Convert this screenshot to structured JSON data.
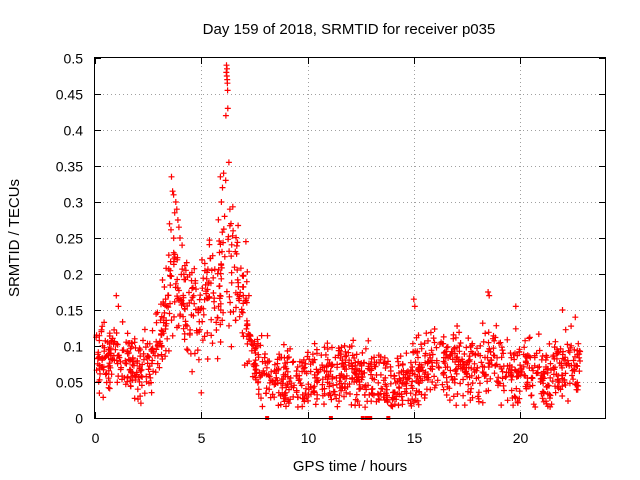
{
  "chart_data": {
    "type": "scatter",
    "title": "Day 159 of 2018, SRMTID for receiver p035",
    "xlabel": "GPS time / hours",
    "ylabel": "SRMTID / TECUs",
    "xlim": [
      0,
      24
    ],
    "ylim": [
      0,
      0.5
    ],
    "x_ticks": [
      0,
      5,
      10,
      15,
      20
    ],
    "x_tick_labels": [
      "0",
      "5",
      "10",
      "15",
      "20"
    ],
    "y_ticks": [
      0,
      0.05,
      0.1,
      0.15,
      0.2,
      0.25,
      0.3,
      0.35,
      0.4,
      0.45,
      0.5
    ],
    "y_tick_labels": [
      "0",
      "0.05",
      "0.1",
      "0.15",
      "0.2",
      "0.25",
      "0.3",
      "0.35",
      "0.4",
      "0.45",
      "0.5"
    ],
    "grid": true,
    "marker": "+",
    "series_color": "#ff0000",
    "trend": [
      [
        0.0,
        0.075
      ],
      [
        0.5,
        0.08
      ],
      [
        1.0,
        0.085
      ],
      [
        1.5,
        0.08
      ],
      [
        2.0,
        0.07
      ],
      [
        2.5,
        0.075
      ],
      [
        3.0,
        0.1
      ],
      [
        3.3,
        0.14
      ],
      [
        3.7,
        0.19
      ],
      [
        4.2,
        0.17
      ],
      [
        4.7,
        0.14
      ],
      [
        5.2,
        0.16
      ],
      [
        5.7,
        0.18
      ],
      [
        6.2,
        0.22
      ],
      [
        6.7,
        0.19
      ],
      [
        7.2,
        0.13
      ],
      [
        7.5,
        0.08
      ],
      [
        8.0,
        0.055
      ],
      [
        9.0,
        0.05
      ],
      [
        10.0,
        0.05
      ],
      [
        11.0,
        0.06
      ],
      [
        12.0,
        0.065
      ],
      [
        13.0,
        0.05
      ],
      [
        14.0,
        0.045
      ],
      [
        15.0,
        0.06
      ],
      [
        16.0,
        0.075
      ],
      [
        17.0,
        0.07
      ],
      [
        18.0,
        0.065
      ],
      [
        18.5,
        0.08
      ],
      [
        19.0,
        0.075
      ],
      [
        20.0,
        0.065
      ],
      [
        21.0,
        0.06
      ],
      [
        21.5,
        0.06
      ],
      [
        22.0,
        0.07
      ],
      [
        22.8,
        0.07
      ]
    ],
    "spread": 0.032,
    "n_points": 1500,
    "x_range_data": [
      0.0,
      22.85
    ],
    "outliers": [
      {
        "x": 3.6,
        "y": 0.335
      },
      {
        "x": 3.65,
        "y": 0.315
      },
      {
        "x": 3.7,
        "y": 0.31
      },
      {
        "x": 3.8,
        "y": 0.3
      },
      {
        "x": 3.85,
        "y": 0.29
      },
      {
        "x": 3.9,
        "y": 0.275
      },
      {
        "x": 3.95,
        "y": 0.265
      },
      {
        "x": 3.75,
        "y": 0.285
      },
      {
        "x": 4.0,
        "y": 0.25
      },
      {
        "x": 4.1,
        "y": 0.24
      },
      {
        "x": 5.9,
        "y": 0.335
      },
      {
        "x": 5.95,
        "y": 0.3
      },
      {
        "x": 6.0,
        "y": 0.32
      },
      {
        "x": 6.05,
        "y": 0.34
      },
      {
        "x": 6.1,
        "y": 0.28
      },
      {
        "x": 6.15,
        "y": 0.33
      },
      {
        "x": 6.18,
        "y": 0.48
      },
      {
        "x": 6.2,
        "y": 0.475
      },
      {
        "x": 6.22,
        "y": 0.47
      },
      {
        "x": 6.23,
        "y": 0.465
      },
      {
        "x": 6.24,
        "y": 0.455
      },
      {
        "x": 6.19,
        "y": 0.49
      },
      {
        "x": 6.21,
        "y": 0.485
      },
      {
        "x": 6.16,
        "y": 0.42
      },
      {
        "x": 6.25,
        "y": 0.43
      },
      {
        "x": 6.3,
        "y": 0.355
      },
      {
        "x": 6.35,
        "y": 0.29
      },
      {
        "x": 6.4,
        "y": 0.27
      },
      {
        "x": 6.5,
        "y": 0.26
      },
      {
        "x": 0.3,
        "y": 0.12
      },
      {
        "x": 1.0,
        "y": 0.17
      },
      {
        "x": 1.1,
        "y": 0.155
      },
      {
        "x": 15.0,
        "y": 0.165
      },
      {
        "x": 15.05,
        "y": 0.155
      },
      {
        "x": 18.5,
        "y": 0.175
      },
      {
        "x": 18.55,
        "y": 0.17
      },
      {
        "x": 19.8,
        "y": 0.155
      },
      {
        "x": 22.0,
        "y": 0.15
      },
      {
        "x": 5.0,
        "y": 0.035
      },
      {
        "x": 22.6,
        "y": 0.14
      }
    ],
    "zero_markers": [
      8.1,
      11.1,
      12.6,
      12.8,
      12.95,
      13.8
    ]
  }
}
